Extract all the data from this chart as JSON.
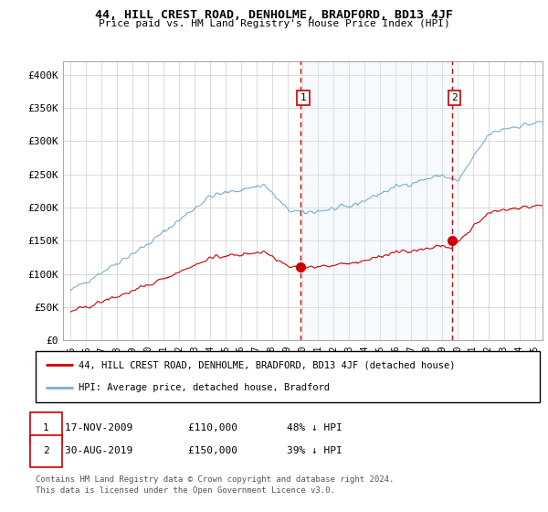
{
  "title": "44, HILL CREST ROAD, DENHOLME, BRADFORD, BD13 4JF",
  "subtitle": "Price paid vs. HM Land Registry's House Price Index (HPI)",
  "ylim": [
    0,
    420000
  ],
  "yticks": [
    0,
    50000,
    100000,
    150000,
    200000,
    250000,
    300000,
    350000,
    400000
  ],
  "ytick_labels": [
    "£0",
    "£50K",
    "£100K",
    "£150K",
    "£200K",
    "£250K",
    "£300K",
    "£350K",
    "£400K"
  ],
  "xlim_start": 1995.0,
  "xlim_end": 2025.5,
  "sale1_year": 2009.88,
  "sale1_price": 110000,
  "sale1_label": "1",
  "sale2_year": 2019.66,
  "sale2_price": 150000,
  "sale2_label": "2",
  "hpi_color": "#7aadcf",
  "price_color": "#cc0000",
  "vline_color": "#cc0000",
  "shade_color": "#ddeeff",
  "background_color": "#ffffff",
  "legend_entry1": "44, HILL CREST ROAD, DENHOLME, BRADFORD, BD13 4JF (detached house)",
  "legend_entry2": "HPI: Average price, detached house, Bradford",
  "footer1": "Contains HM Land Registry data © Crown copyright and database right 2024.",
  "footer2": "This data is licensed under the Open Government Licence v3.0."
}
